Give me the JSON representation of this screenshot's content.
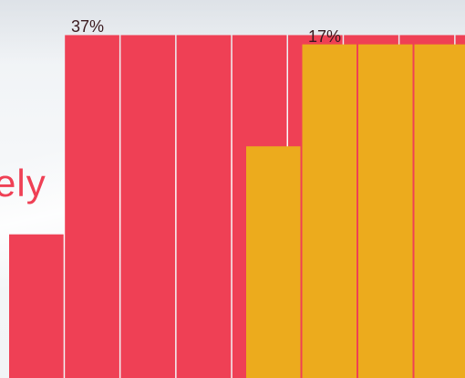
{
  "chart_data": {
    "type": "bar",
    "ylim": [
      0,
      40
    ],
    "grid": false,
    "series": [
      {
        "color": "#ef4055",
        "label": "37%",
        "values": [
          15.5,
          37,
          37,
          37,
          37,
          37,
          37,
          37,
          37
        ]
      },
      {
        "color": "#ecab1d",
        "label": "17%",
        "values": [
          25,
          36,
          36,
          36
        ]
      }
    ]
  },
  "partial_text": "ely"
}
